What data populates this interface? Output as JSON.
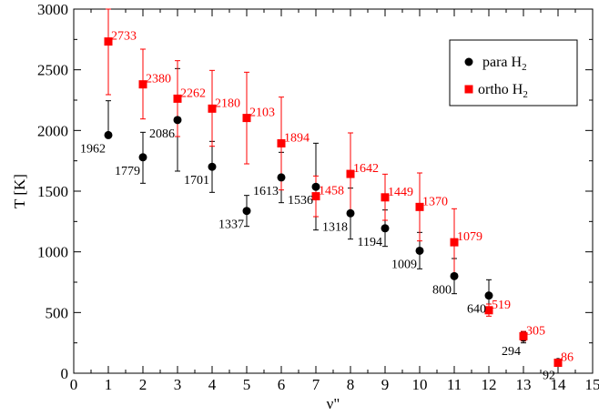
{
  "chart_data": {
    "type": "scatter",
    "xlabel": "ν\"",
    "ylabel": "T [K]",
    "xlim": [
      0,
      15
    ],
    "ylim": [
      0,
      3000
    ],
    "xticks": [
      0,
      1,
      2,
      3,
      4,
      5,
      6,
      7,
      8,
      9,
      10,
      11,
      12,
      13,
      14,
      15
    ],
    "yticks": [
      0,
      500,
      1000,
      1500,
      2000,
      2500,
      3000
    ],
    "legend": {
      "placement": "top-right"
    },
    "series": [
      {
        "name": "para H",
        "name_subscript": "2",
        "color": "#000000",
        "marker": "circle",
        "points": [
          {
            "x": 1,
            "y": 1962,
            "err_low": 1962,
            "err_high": 2245,
            "label": "1962"
          },
          {
            "x": 2,
            "y": 1779,
            "err_low": 1565,
            "err_high": 1985,
            "label": "1779"
          },
          {
            "x": 3,
            "y": 2086,
            "err_low": 1665,
            "err_high": 2510,
            "label": "2086"
          },
          {
            "x": 4,
            "y": 1701,
            "err_low": 1490,
            "err_high": 1910,
            "label": "1701"
          },
          {
            "x": 5,
            "y": 1337,
            "err_low": 1210,
            "err_high": 1465,
            "label": "1337"
          },
          {
            "x": 6,
            "y": 1613,
            "err_low": 1405,
            "err_high": 1820,
            "label": "1613"
          },
          {
            "x": 7,
            "y": 1536,
            "err_low": 1180,
            "err_high": 1895,
            "label": "1536"
          },
          {
            "x": 8,
            "y": 1318,
            "err_low": 1105,
            "err_high": 1525,
            "label": "1318"
          },
          {
            "x": 9,
            "y": 1194,
            "err_low": 1045,
            "err_high": 1345,
            "label": "1194"
          },
          {
            "x": 10,
            "y": 1009,
            "err_low": 860,
            "err_high": 1160,
            "label": "1009"
          },
          {
            "x": 11,
            "y": 800,
            "err_low": 655,
            "err_high": 945,
            "label": "800"
          },
          {
            "x": 12,
            "y": 640,
            "err_low": 510,
            "err_high": 770,
            "label": "640"
          },
          {
            "x": 13,
            "y": 294,
            "err_low": 250,
            "err_high": 340,
            "label": "294"
          },
          {
            "x": 14,
            "y": 92,
            "err_low": 75,
            "err_high": 108,
            "label": "92"
          }
        ]
      },
      {
        "name": "ortho H",
        "name_subscript": "2",
        "color": "#ff0000",
        "marker": "square",
        "points": [
          {
            "x": 1,
            "y": 2733,
            "err_low": 2295,
            "err_high": 3000,
            "label": "2733"
          },
          {
            "x": 2,
            "y": 2380,
            "err_low": 2095,
            "err_high": 2670,
            "label": "2380"
          },
          {
            "x": 3,
            "y": 2262,
            "err_low": 1950,
            "err_high": 2575,
            "label": "2262"
          },
          {
            "x": 4,
            "y": 2180,
            "err_low": 1870,
            "err_high": 2495,
            "label": "2180"
          },
          {
            "x": 5,
            "y": 2103,
            "err_low": 1725,
            "err_high": 2480,
            "label": "2103"
          },
          {
            "x": 6,
            "y": 1894,
            "err_low": 1510,
            "err_high": 2275,
            "label": "1894"
          },
          {
            "x": 7,
            "y": 1458,
            "err_low": 1290,
            "err_high": 1625,
            "label": "1458"
          },
          {
            "x": 8,
            "y": 1642,
            "err_low": 1305,
            "err_high": 1980,
            "label": "1642"
          },
          {
            "x": 9,
            "y": 1449,
            "err_low": 1260,
            "err_high": 1640,
            "label": "1449"
          },
          {
            "x": 10,
            "y": 1370,
            "err_low": 1090,
            "err_high": 1650,
            "label": "1370"
          },
          {
            "x": 11,
            "y": 1079,
            "err_low": 800,
            "err_high": 1355,
            "label": "1079"
          },
          {
            "x": 12,
            "y": 519,
            "err_low": 470,
            "err_high": 570,
            "label": "519"
          },
          {
            "x": 13,
            "y": 305,
            "err_low": 265,
            "err_high": 345,
            "label": "305"
          },
          {
            "x": 14,
            "y": 86,
            "err_low": 70,
            "err_high": 102,
            "label": "86"
          }
        ]
      }
    ]
  }
}
